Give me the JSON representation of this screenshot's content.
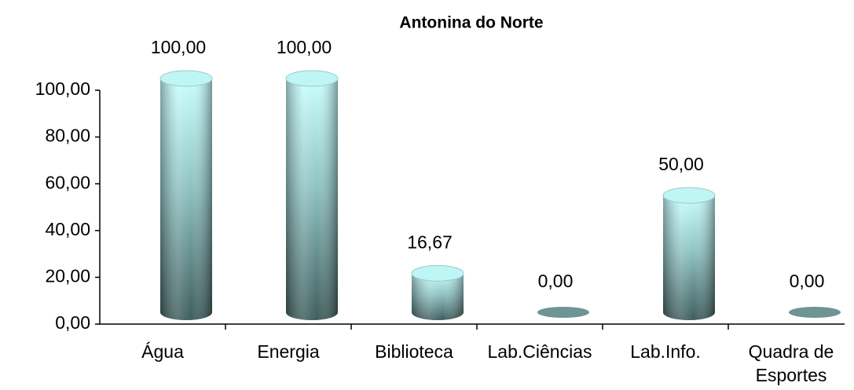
{
  "chart_data": {
    "type": "bar3d",
    "title": "Antonina do Norte",
    "categories": [
      "Água",
      "Energia",
      "Biblioteca",
      "Lab.Ciências",
      "Lab.Info.",
      "Quadra de Esportes"
    ],
    "values": [
      100,
      100,
      16.67,
      0,
      50,
      0
    ],
    "value_labels": [
      "100,00",
      "100,00",
      "16,67",
      "0,00",
      "50,00",
      "0,00"
    ],
    "ylim": [
      0,
      100
    ],
    "yticks": [
      {
        "value": 0,
        "label": "0,00"
      },
      {
        "value": 20,
        "label": "20,00"
      },
      {
        "value": 40,
        "label": "40,00"
      },
      {
        "value": 60,
        "label": "60,00"
      },
      {
        "value": 80,
        "label": "80,00"
      },
      {
        "value": 100,
        "label": "100,00"
      }
    ],
    "color": "#bff5f5",
    "grid": false
  }
}
